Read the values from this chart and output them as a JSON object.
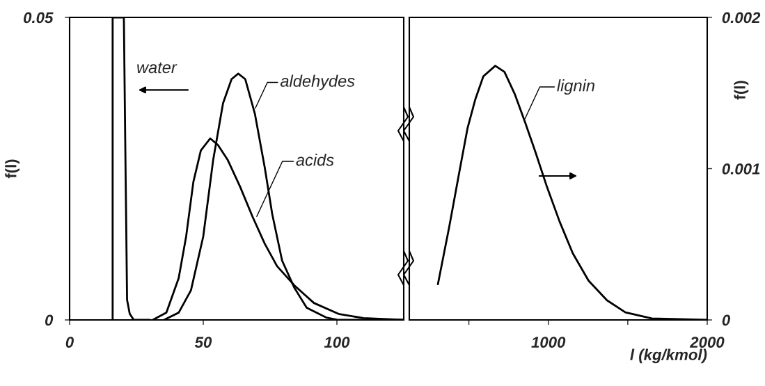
{
  "chart_data": [
    {
      "type": "line",
      "xlim": [
        0,
        125
      ],
      "xticks": [
        0,
        50,
        100
      ],
      "ylim": [
        0,
        0.05
      ],
      "yticks": [
        0,
        0.05
      ],
      "ylabel": "f(l)",
      "grid": false,
      "legend": false,
      "series": [
        {
          "color": "#000000",
          "x": [
            16.1,
            16.1,
            20.3,
            20.8,
            21.5,
            22.5,
            24,
            30
          ],
          "values": [
            0,
            0.05,
            0.05,
            0.03,
            0.0033,
            0.001,
            0,
            0
          ]
        },
        {
          "color": "#000000",
          "x": [
            31.1,
            36.2,
            40.8,
            43.6,
            46.3,
            49.1,
            52.6,
            55.5,
            59.2,
            63.8,
            68.4,
            73,
            77.6,
            84.1,
            91.4,
            100.6,
            109.9,
            124.9
          ],
          "values": [
            0,
            0.0012,
            0.0069,
            0.0138,
            0.0228,
            0.028,
            0.03,
            0.0289,
            0.0264,
            0.022,
            0.0171,
            0.0126,
            0.0089,
            0.0057,
            0.0028,
            0.001,
            0.0003,
            0
          ]
        },
        {
          "color": "#000000",
          "x": [
            35.3,
            40.8,
            45.4,
            50,
            53.7,
            57.4,
            60.6,
            63.1,
            65.7,
            69.3,
            73,
            75.8,
            79.5,
            84.1,
            88.7,
            96,
            100.6,
            124.9
          ],
          "values": [
            0,
            0.0012,
            0.0049,
            0.0138,
            0.0264,
            0.0358,
            0.0398,
            0.0407,
            0.0398,
            0.0341,
            0.0252,
            0.0175,
            0.0098,
            0.0053,
            0.002,
            0.0004,
            0,
            0
          ]
        }
      ],
      "annotations": [
        "water",
        {
          "text": "aldehydes",
          "x": 69.5,
          "y": 0.035
        },
        {
          "text": "acids",
          "x": 70,
          "y": 0.0171
        }
      ]
    },
    {
      "type": "line",
      "xlim": [
        125,
        2000
      ],
      "xticks": [
        {
          "value": 500,
          "label": null
        },
        1000,
        {
          "value": 1500,
          "label": null
        },
        2000
      ],
      "ylim": [
        0,
        0.002
      ],
      "yticks": [
        0,
        0.001,
        0.002
      ],
      "ylabel": "f(l)",
      "xlabel": "l (kg/kmol)",
      "grid": false,
      "legend": false,
      "series": [
        {
          "color": "#000000",
          "x": [
            305,
            376,
            442,
            492,
            541,
            591,
            666,
            724,
            790,
            856,
            922,
            988,
            1071,
            1154,
            1253,
            1369,
            1485,
            1651,
            1998
          ],
          "values": [
            0.000236,
            0.000614,
            0.00099,
            0.00127,
            0.00146,
            0.00161,
            0.00168,
            0.00164,
            0.00149,
            0.0013,
            0.0011,
            0.00089,
            0.00065,
            0.00044,
            0.00026,
            0.00013,
            5e-05,
            1e-05,
            0
          ]
        }
      ],
      "annotations": [
        {
          "text": "lignin",
          "x": 853,
          "y": 0.00133
        }
      ]
    }
  ]
}
